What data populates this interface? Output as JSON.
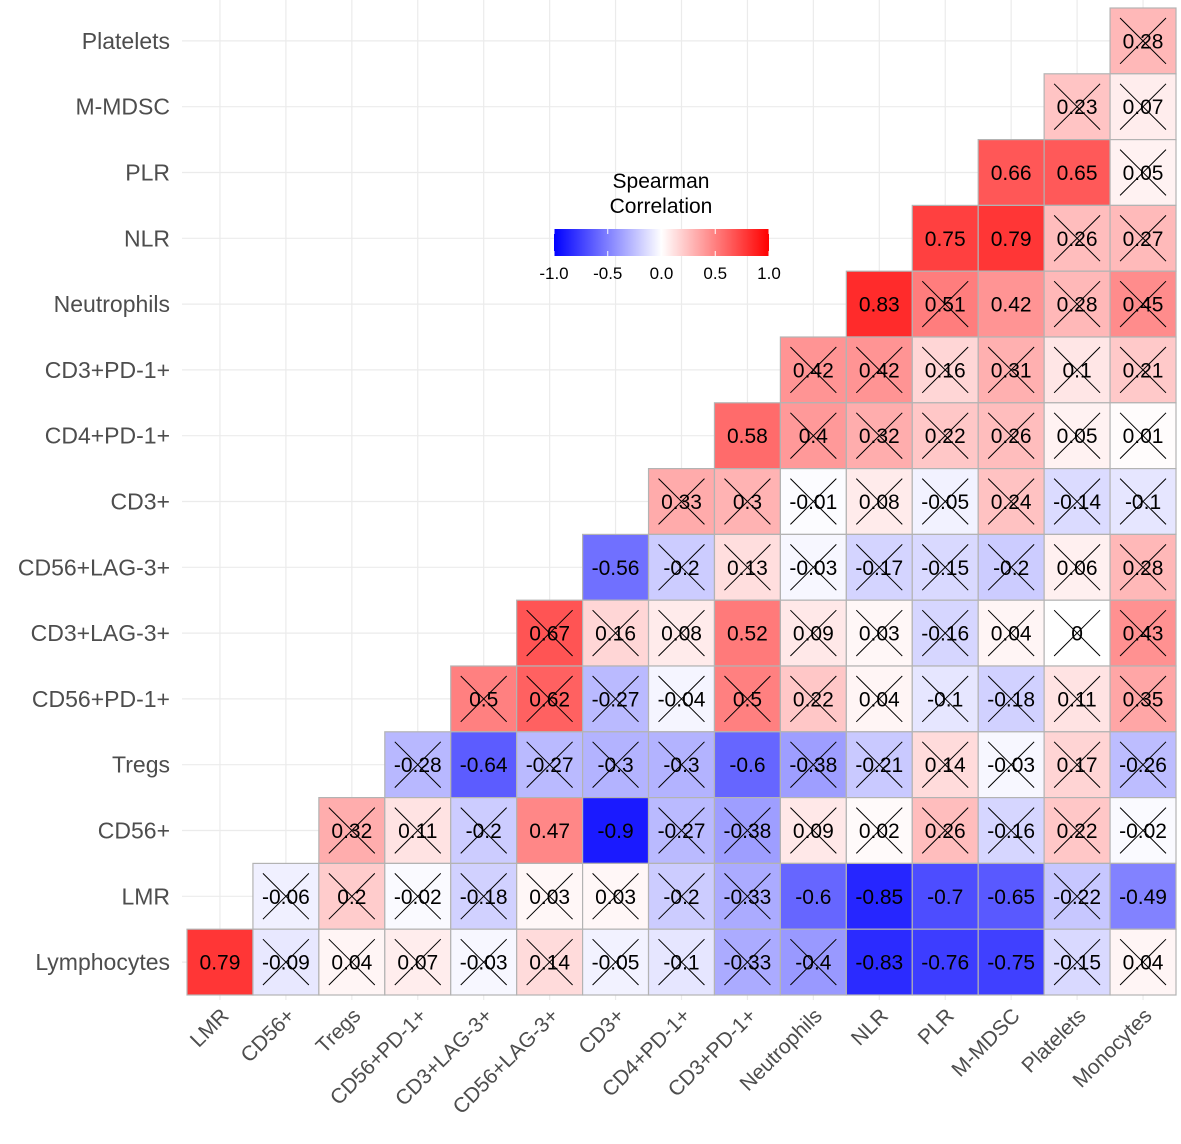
{
  "chart_data": {
    "type": "heatmap",
    "title": "",
    "xlabel": "",
    "ylabel": "",
    "x_categories": [
      "LMR",
      "CD56+",
      "Tregs",
      "CD56+PD-1+",
      "CD3+LAG-3+",
      "CD56+LAG-3+",
      "CD3+",
      "CD4+PD-1+",
      "CD3+PD-1+",
      "Neutrophils",
      "NLR",
      "PLR",
      "M-MDSC",
      "Platelets",
      "Monocytes"
    ],
    "y_categories": [
      "Platelets",
      "M-MDSC",
      "PLR",
      "NLR",
      "Neutrophils",
      "CD3+PD-1+",
      "CD4+PD-1+",
      "CD3+",
      "CD56+LAG-3+",
      "CD3+LAG-3+",
      "CD56+PD-1+",
      "Tregs",
      "CD56+",
      "LMR",
      "Lymphocytes"
    ],
    "values": [
      [
        null,
        null,
        null,
        null,
        null,
        null,
        null,
        null,
        null,
        null,
        null,
        null,
        null,
        null,
        0.28
      ],
      [
        null,
        null,
        null,
        null,
        null,
        null,
        null,
        null,
        null,
        null,
        null,
        null,
        null,
        0.23,
        0.07
      ],
      [
        null,
        null,
        null,
        null,
        null,
        null,
        null,
        null,
        null,
        null,
        null,
        null,
        0.66,
        0.65,
        0.05
      ],
      [
        null,
        null,
        null,
        null,
        null,
        null,
        null,
        null,
        null,
        null,
        null,
        0.75,
        0.79,
        0.26,
        0.27
      ],
      [
        null,
        null,
        null,
        null,
        null,
        null,
        null,
        null,
        null,
        null,
        0.83,
        0.51,
        0.42,
        0.28,
        0.45
      ],
      [
        null,
        null,
        null,
        null,
        null,
        null,
        null,
        null,
        null,
        0.42,
        0.42,
        0.16,
        0.31,
        0.1,
        0.21
      ],
      [
        null,
        null,
        null,
        null,
        null,
        null,
        null,
        null,
        0.58,
        0.4,
        0.32,
        0.22,
        0.26,
        0.05,
        0.01
      ],
      [
        null,
        null,
        null,
        null,
        null,
        null,
        null,
        0.33,
        0.3,
        -0.01,
        0.08,
        -0.05,
        0.24,
        -0.14,
        -0.1
      ],
      [
        null,
        null,
        null,
        null,
        null,
        null,
        -0.56,
        -0.2,
        0.13,
        -0.03,
        -0.17,
        -0.15,
        -0.2,
        0.06,
        0.28
      ],
      [
        null,
        null,
        null,
        null,
        null,
        0.67,
        0.16,
        0.08,
        0.52,
        0.09,
        0.03,
        -0.16,
        0.04,
        0,
        0.43
      ],
      [
        null,
        null,
        null,
        null,
        0.5,
        0.62,
        -0.27,
        -0.04,
        0.5,
        0.22,
        0.04,
        -0.1,
        -0.18,
        0.11,
        0.35
      ],
      [
        null,
        null,
        null,
        -0.28,
        -0.64,
        -0.27,
        -0.3,
        -0.3,
        -0.6,
        -0.38,
        -0.21,
        0.14,
        -0.03,
        0.17,
        -0.26
      ],
      [
        null,
        null,
        0.32,
        0.11,
        -0.2,
        0.47,
        -0.9,
        -0.27,
        -0.38,
        0.09,
        0.02,
        0.26,
        -0.16,
        0.22,
        -0.02
      ],
      [
        null,
        -0.06,
        0.2,
        -0.02,
        -0.18,
        0.03,
        0.03,
        -0.2,
        -0.33,
        -0.6,
        -0.85,
        -0.7,
        -0.65,
        -0.22,
        -0.49
      ],
      [
        0.79,
        -0.09,
        0.04,
        0.07,
        -0.03,
        0.14,
        -0.05,
        -0.1,
        -0.33,
        -0.4,
        -0.83,
        -0.76,
        -0.75,
        -0.15,
        0.04
      ]
    ],
    "labels": [
      [
        null,
        null,
        null,
        null,
        null,
        null,
        null,
        null,
        null,
        null,
        null,
        null,
        null,
        null,
        "0.28"
      ],
      [
        null,
        null,
        null,
        null,
        null,
        null,
        null,
        null,
        null,
        null,
        null,
        null,
        null,
        "0.23",
        "0.07"
      ],
      [
        null,
        null,
        null,
        null,
        null,
        null,
        null,
        null,
        null,
        null,
        null,
        null,
        "0.66",
        "0.65",
        "0.05"
      ],
      [
        null,
        null,
        null,
        null,
        null,
        null,
        null,
        null,
        null,
        null,
        null,
        "0.75",
        "0.79",
        "0.26",
        "0.27"
      ],
      [
        null,
        null,
        null,
        null,
        null,
        null,
        null,
        null,
        null,
        null,
        "0.83",
        "0.51",
        "0.42",
        "0.28",
        "0.45"
      ],
      [
        null,
        null,
        null,
        null,
        null,
        null,
        null,
        null,
        null,
        "0.42",
        "0.42",
        "0.16",
        "0.31",
        "0.1",
        "0.21"
      ],
      [
        null,
        null,
        null,
        null,
        null,
        null,
        null,
        null,
        "0.58",
        "0.4",
        "0.32",
        "0.22",
        "0.26",
        "0.05",
        "0.01"
      ],
      [
        null,
        null,
        null,
        null,
        null,
        null,
        null,
        "0.33",
        "0.3",
        "-0.01",
        "0.08",
        "-0.05",
        "0.24",
        "-0.14",
        "-0.1"
      ],
      [
        null,
        null,
        null,
        null,
        null,
        null,
        "-0.56",
        "-0.2",
        "0.13",
        "-0.03",
        "-0.17",
        "-0.15",
        "-0.2",
        "0.06",
        "0.28"
      ],
      [
        null,
        null,
        null,
        null,
        null,
        "0.67",
        "0.16",
        "0.08",
        "0.52",
        "0.09",
        "0.03",
        "-0.16",
        "0.04",
        "0",
        "0.43"
      ],
      [
        null,
        null,
        null,
        null,
        "0.5",
        "0.62",
        "-0.27",
        "-0.04",
        "0.5",
        "0.22",
        "0.04",
        "-0.1",
        "-0.18",
        "0.11",
        "0.35"
      ],
      [
        null,
        null,
        null,
        "-0.28",
        "-0.64",
        "-0.27",
        "-0.3",
        "-0.3",
        "-0.6",
        "-0.38",
        "-0.21",
        "0.14",
        "-0.03",
        "0.17",
        "-0.26"
      ],
      [
        null,
        null,
        "0.32",
        "0.11",
        "-0.2",
        "0.47",
        "-0.9",
        "-0.27",
        "-0.38",
        "0.09",
        "0.02",
        "0.26",
        "-0.16",
        "0.22",
        "-0.02"
      ],
      [
        null,
        "-0.06",
        "0.2",
        "-0.02",
        "-0.18",
        "0.03",
        "0.03",
        "-0.2",
        "-0.33",
        "-0.6",
        "-0.85",
        "-0.7",
        "-0.65",
        "-0.22",
        "-0.49"
      ],
      [
        "0.79",
        "-0.09",
        "0.04",
        "0.07",
        "-0.03",
        "0.14",
        "-0.05",
        "-0.1",
        "-0.33",
        "-0.4",
        "-0.83",
        "-0.76",
        "-0.75",
        "-0.15",
        "0.04"
      ]
    ],
    "crossed": [
      [
        false,
        false,
        false,
        false,
        false,
        false,
        false,
        false,
        false,
        false,
        false,
        false,
        false,
        false,
        true
      ],
      [
        false,
        false,
        false,
        false,
        false,
        false,
        false,
        false,
        false,
        false,
        false,
        false,
        false,
        true,
        true
      ],
      [
        false,
        false,
        false,
        false,
        false,
        false,
        false,
        false,
        false,
        false,
        false,
        false,
        false,
        false,
        true
      ],
      [
        false,
        false,
        false,
        false,
        false,
        false,
        false,
        false,
        false,
        false,
        false,
        false,
        false,
        true,
        true
      ],
      [
        false,
        false,
        false,
        false,
        false,
        false,
        false,
        false,
        false,
        false,
        false,
        true,
        false,
        true,
        true
      ],
      [
        false,
        false,
        false,
        false,
        false,
        false,
        false,
        false,
        false,
        true,
        true,
        true,
        true,
        true,
        true
      ],
      [
        false,
        false,
        false,
        false,
        false,
        false,
        false,
        false,
        false,
        true,
        true,
        true,
        true,
        true,
        true
      ],
      [
        false,
        false,
        false,
        false,
        false,
        false,
        false,
        true,
        true,
        true,
        true,
        true,
        true,
        true,
        true
      ],
      [
        false,
        false,
        false,
        false,
        false,
        false,
        false,
        true,
        true,
        true,
        true,
        true,
        true,
        true,
        true
      ],
      [
        false,
        false,
        false,
        false,
        false,
        true,
        true,
        true,
        false,
        true,
        true,
        true,
        true,
        true,
        true
      ],
      [
        false,
        false,
        false,
        false,
        true,
        true,
        true,
        true,
        true,
        true,
        true,
        true,
        true,
        true,
        true
      ],
      [
        false,
        false,
        false,
        true,
        false,
        true,
        true,
        true,
        false,
        true,
        true,
        true,
        true,
        true,
        true
      ],
      [
        false,
        false,
        true,
        true,
        true,
        false,
        false,
        true,
        true,
        true,
        true,
        true,
        true,
        true,
        true
      ],
      [
        false,
        true,
        true,
        true,
        true,
        true,
        true,
        true,
        true,
        false,
        false,
        false,
        false,
        true,
        false
      ],
      [
        false,
        true,
        true,
        true,
        true,
        true,
        true,
        true,
        true,
        true,
        false,
        false,
        false,
        true,
        true
      ]
    ],
    "legend": {
      "title": "Spearman\nCorrelation",
      "title_lines": [
        "Spearman",
        "Correlation"
      ],
      "ticks": [
        -1.0,
        -0.5,
        0.0,
        0.5,
        1.0
      ],
      "tick_labels": [
        "-1.0",
        "-0.5",
        "0.0",
        "0.5",
        "1.0"
      ],
      "range": [
        -1,
        1
      ],
      "position": "top-center"
    },
    "colors": {
      "low": "#0000ff",
      "mid": "#ffffff",
      "high": "#ff0000",
      "cell_border": "#b3b3b3",
      "grid": "#ebebeb"
    }
  }
}
